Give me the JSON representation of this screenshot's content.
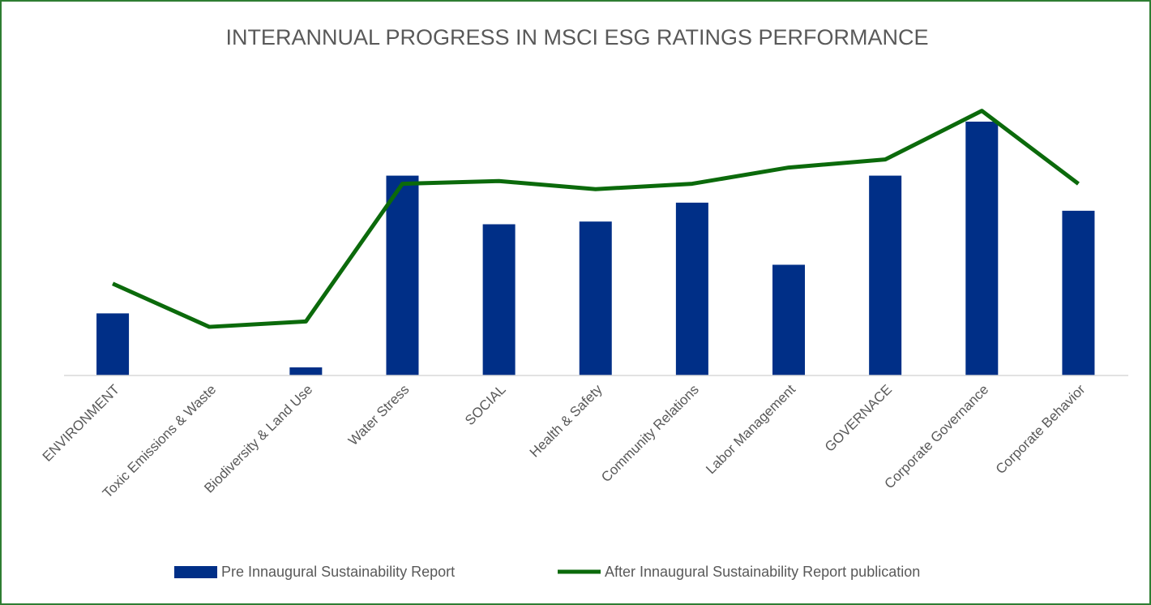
{
  "chart_data": {
    "type": "bar_line",
    "title": "INTERANNUAL PROGRESS IN MSCI ESG RATINGS PERFORMANCE",
    "categories": [
      "ENVIRONMENT",
      "Toxic Emissions & Waste",
      "Biodiversity & Land Use",
      "Water Stress",
      "SOCIAL",
      "Health & Safety",
      "Community Relations",
      "Labor Management",
      "GOVERNACE",
      "Corporate Governance",
      "Corporate Behavior"
    ],
    "series": [
      {
        "name": "Pre Innaugural Sustainability Report",
        "type": "bar",
        "color": "#002f87",
        "values": [
          2.3,
          0,
          0.3,
          7.4,
          5.6,
          5.7,
          6.4,
          4.1,
          7.4,
          9.4,
          6.1
        ]
      },
      {
        "name": "After Innaugural Sustainability Report publication",
        "type": "line",
        "color": "#0b6a0b",
        "values": [
          3.4,
          1.8,
          2.0,
          7.1,
          7.2,
          6.9,
          7.1,
          7.7,
          8.0,
          9.8,
          7.1
        ]
      }
    ],
    "ylim": [
      0,
      10
    ],
    "legend": "bottom"
  }
}
